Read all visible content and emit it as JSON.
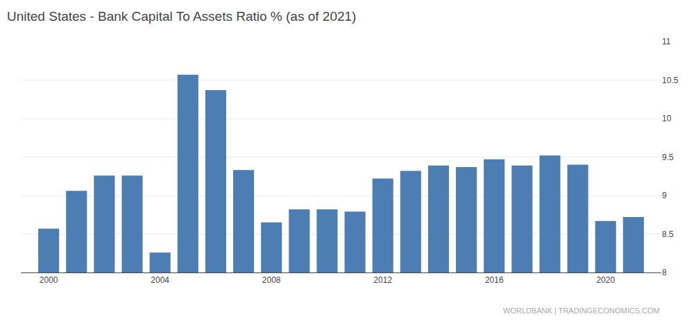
{
  "chart_data": {
    "type": "bar",
    "title": "United States - Bank Capital To Assets Ratio % (as of 2021)",
    "x": [
      2000,
      2001,
      2002,
      2003,
      2004,
      2005,
      2006,
      2007,
      2008,
      2009,
      2010,
      2011,
      2012,
      2013,
      2014,
      2015,
      2016,
      2017,
      2018,
      2019,
      2020,
      2021
    ],
    "values": [
      8.57,
      9.06,
      9.26,
      9.26,
      8.26,
      10.57,
      10.37,
      9.33,
      8.65,
      8.82,
      8.82,
      8.79,
      9.22,
      9.32,
      9.39,
      9.37,
      9.47,
      9.39,
      9.52,
      9.4,
      8.67,
      8.72
    ],
    "color": "#4d7eb3",
    "xlim": [
      1999,
      2022
    ],
    "xticks": [
      2000,
      2004,
      2008,
      2012,
      2016,
      2020
    ],
    "ylim": [
      8.0,
      11.0
    ],
    "yticks": [
      8.0,
      8.5,
      9.0,
      9.5,
      10.0,
      10.5,
      11.0
    ],
    "grid": true,
    "annotations": [
      "WORLDBANK | TRADINGECONOMICS.COM"
    ]
  }
}
